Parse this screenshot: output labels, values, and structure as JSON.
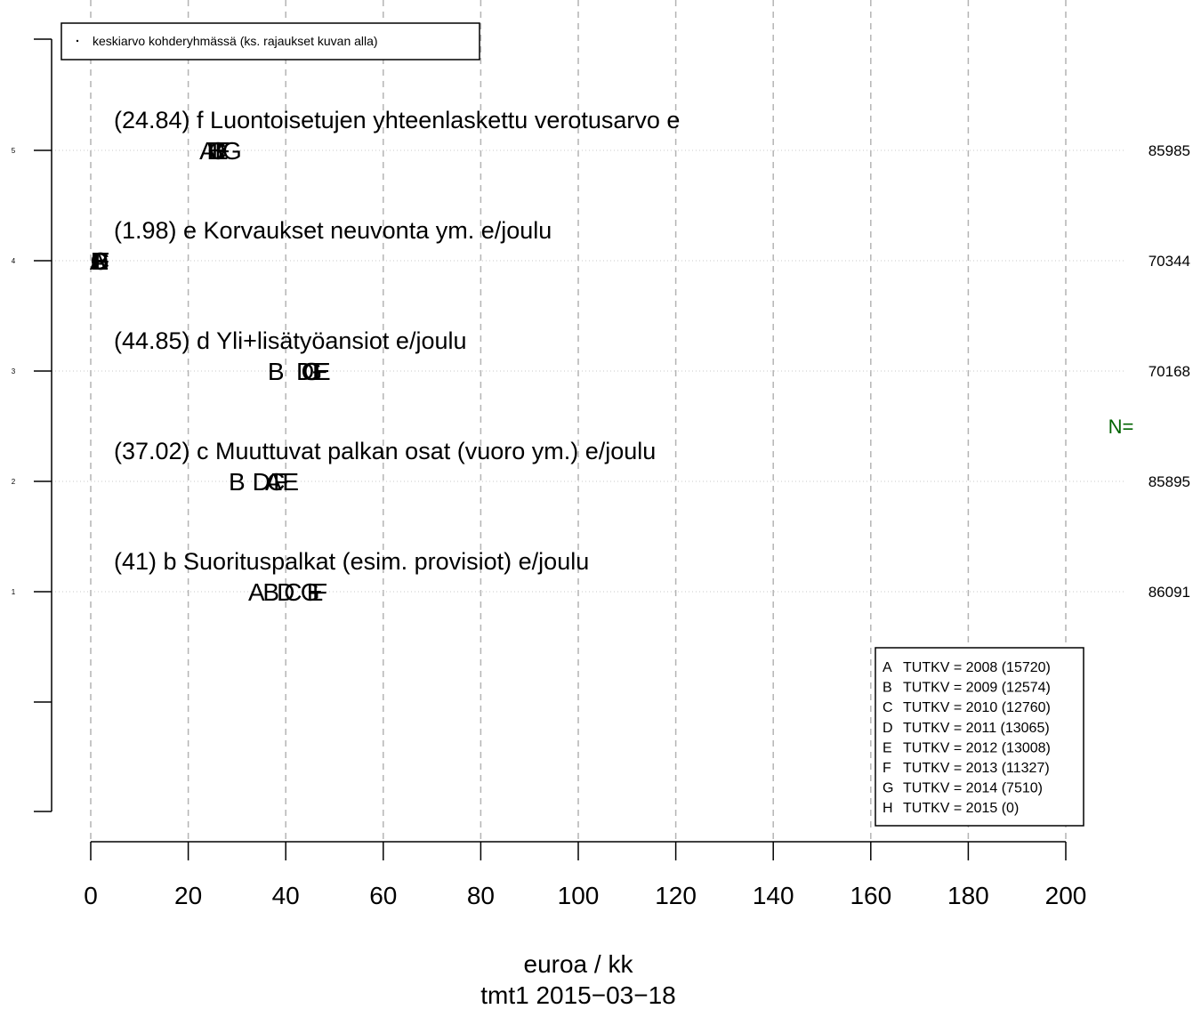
{
  "chart_data": {
    "type": "scatter",
    "xlabel": "euroa / kk",
    "caption": "tmt1 2015−03−18",
    "xlim": [
      0,
      200
    ],
    "x_ticks": [
      0,
      20,
      40,
      60,
      80,
      100,
      120,
      140,
      160,
      180,
      200
    ],
    "x_tick_labels": [
      "0",
      "20",
      "40",
      "60",
      "80",
      "100",
      "120",
      "140",
      "160",
      "180",
      "200"
    ],
    "y_ticks": [
      1,
      2,
      3,
      4,
      5
    ],
    "y_tick_labels": [
      "1",
      "2",
      "3",
      "4",
      "5"
    ],
    "grid": "vertical dashed",
    "legend_top": "keskiarvo kohderyhmässä (ks. rajaukset kuvan alla)",
    "legend_top_placement": "top-left",
    "n_label": "N=",
    "n_label_color": "#006400",
    "rows": [
      {
        "y": 1,
        "label": "(41) b Suorituspalkat (esim. provisiot) e/joulu",
        "n": "86091",
        "points": [
          {
            "s": "A",
            "x": 34
          },
          {
            "s": "B",
            "x": 37
          },
          {
            "s": "C",
            "x": 41.5
          },
          {
            "s": "D",
            "x": 40
          },
          {
            "s": "E",
            "x": 46
          },
          {
            "s": "F",
            "x": 47
          },
          {
            "s": "G",
            "x": 45
          }
        ]
      },
      {
        "y": 2,
        "label": "(37.02) c Muuttuvat palkan osat (vuoro ym.) e/joulu",
        "n": "85895",
        "points": [
          {
            "s": "B",
            "x": 30
          },
          {
            "s": "C",
            "x": 38
          },
          {
            "s": "D",
            "x": 35
          },
          {
            "s": "A",
            "x": 37.5
          },
          {
            "s": "F",
            "x": 39
          },
          {
            "s": "E",
            "x": 41
          }
        ]
      },
      {
        "y": 3,
        "label": "(44.85) d Yli+lisätyöansiot e/joulu",
        "n": "70168",
        "points": [
          {
            "s": "B",
            "x": 38
          },
          {
            "s": "D",
            "x": 44
          },
          {
            "s": "C",
            "x": 45
          },
          {
            "s": "G",
            "x": 45.5
          },
          {
            "s": "F",
            "x": 47
          },
          {
            "s": "E",
            "x": 47.5
          }
        ]
      },
      {
        "y": 4,
        "label": "(1.98) e Korvaukset neuvonta ym. e/joulu",
        "n": "70344",
        "points": [
          {
            "s": "A",
            "x": 1.5
          },
          {
            "s": "C",
            "x": 2
          },
          {
            "s": "D",
            "x": 1.8
          },
          {
            "s": "E",
            "x": 2
          },
          {
            "s": "F",
            "x": 2.3
          },
          {
            "s": "G",
            "x": 1.9
          },
          {
            "s": "B",
            "x": 2
          }
        ]
      },
      {
        "y": 5,
        "label": "(24.84) f Luontoisetujen yhteenlaskettu verotusarvo e",
        "n": "85985",
        "points": [
          {
            "s": "A",
            "x": 24
          },
          {
            "s": "B",
            "x": 25.5
          },
          {
            "s": "C",
            "x": 26
          },
          {
            "s": "D",
            "x": 25.8
          },
          {
            "s": "E",
            "x": 26.5
          },
          {
            "s": "F",
            "x": 27
          },
          {
            "s": "G",
            "x": 29
          }
        ]
      }
    ],
    "legend": [
      {
        "key": "A",
        "text": "TUTKV = 2008 (15720)"
      },
      {
        "key": "B",
        "text": "TUTKV = 2009 (12574)"
      },
      {
        "key": "C",
        "text": "TUTKV = 2010 (12760)"
      },
      {
        "key": "D",
        "text": "TUTKV = 2011 (13065)"
      },
      {
        "key": "E",
        "text": "TUTKV = 2012 (13008)"
      },
      {
        "key": "F",
        "text": "TUTKV = 2013 (11327)"
      },
      {
        "key": "G",
        "text": "TUTKV = 2014 (7510)"
      },
      {
        "key": "H",
        "text": "TUTKV = 2015 (0)"
      }
    ],
    "legend_placement": "bottom-right"
  }
}
